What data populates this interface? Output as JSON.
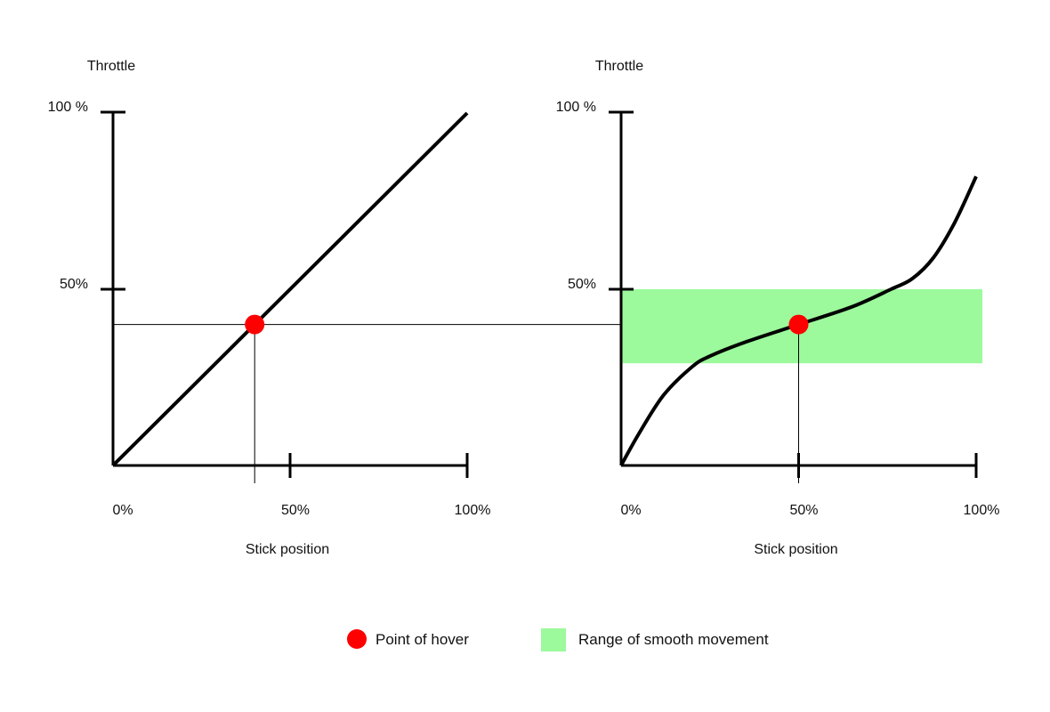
{
  "colors": {
    "axis": "#000000",
    "hover": "#ff0000",
    "smooth_range": "#9cfa9c",
    "guide": "#000000"
  },
  "chart_data": [
    {
      "type": "line",
      "ylabel": "Throttle",
      "xlabel": "Stick position",
      "x_ticks": [
        "0%",
        "50%",
        "100%"
      ],
      "y_ticks": [
        "50%",
        "100 %"
      ],
      "xlim": [
        0,
        100
      ],
      "ylim": [
        0,
        100
      ],
      "series": [
        {
          "x": [
            0,
            100
          ],
          "y": [
            0,
            100
          ]
        }
      ],
      "hover_point": {
        "x": 40,
        "y": 40
      }
    },
    {
      "type": "line",
      "ylabel": "Throttle",
      "xlabel": "Stick position",
      "x_ticks": [
        "0%",
        "50%",
        "100%"
      ],
      "y_ticks": [
        "50%",
        "100 %"
      ],
      "xlim": [
        0,
        100
      ],
      "ylim": [
        0,
        100
      ],
      "series": [
        {
          "x": [
            0,
            5,
            12,
            20,
            25,
            35,
            50,
            65,
            76,
            82,
            88,
            94,
            100
          ],
          "y": [
            0,
            9,
            20,
            28,
            31,
            35,
            40,
            45,
            50,
            53,
            59,
            69,
            82
          ]
        }
      ],
      "hover_point": {
        "x": 50,
        "y": 40
      },
      "smooth_band": {
        "y_min": 29,
        "y_max": 50
      }
    }
  ],
  "legend": [
    {
      "label": "Point of hover",
      "symbol": "circle"
    },
    {
      "label": "Range of smooth movement",
      "symbol": "square"
    }
  ]
}
